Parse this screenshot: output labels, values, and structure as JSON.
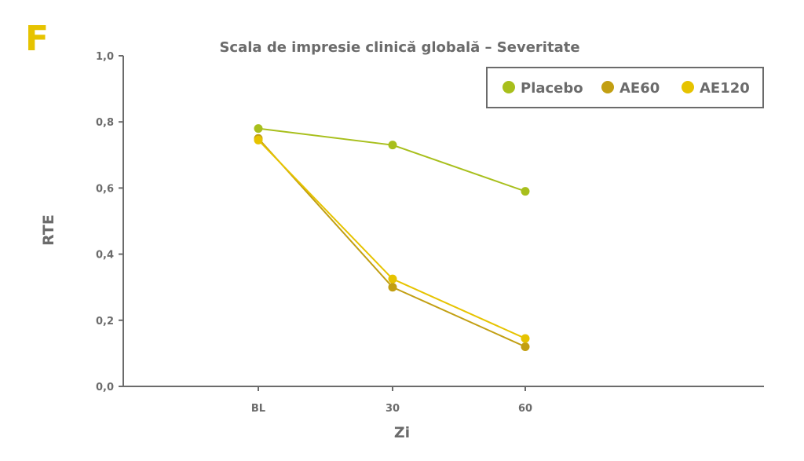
{
  "panel_label": "F",
  "colors": {
    "axis": "#6b6b6b",
    "text": "#6b6b6b",
    "panel_letter": "#e6c300",
    "legend_border": "#6b6b6b"
  },
  "chart_data": {
    "type": "line",
    "title": "Scala de impresie clinică globală – Severitate",
    "xlabel": "Zi",
    "ylabel": "RTE",
    "categories": [
      "BL",
      "30",
      "60"
    ],
    "ylim": [
      0,
      1.0
    ],
    "yticks": [
      "0,0",
      "0,2",
      "0,4",
      "0,6",
      "0,8",
      "1,0"
    ],
    "ytick_values": [
      0,
      0.2,
      0.4,
      0.6,
      0.8,
      1.0
    ],
    "grid": false,
    "legend_position": "top-right",
    "series": [
      {
        "name": "Placebo",
        "color": "#a8bf1c",
        "values": [
          0.78,
          0.73,
          0.59
        ]
      },
      {
        "name": "AE60",
        "color": "#c29f12",
        "values": [
          0.75,
          0.3,
          0.12
        ]
      },
      {
        "name": "AE120",
        "color": "#e6c300",
        "values": [
          0.745,
          0.325,
          0.145
        ]
      }
    ]
  }
}
